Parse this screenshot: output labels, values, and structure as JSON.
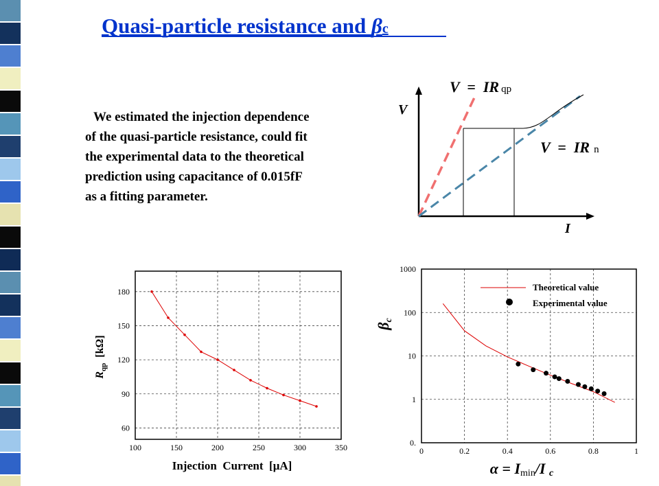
{
  "title": {
    "main": "Quasi-particle resistance and ",
    "greek": "β",
    "sub": "c"
  },
  "body": {
    "lines": [
      "We estimated the injection dependence",
      "of the quasi-particle resistance, could fit",
      "the experimental data to the theoretical",
      "prediction using capacitance of 0.015fF",
      "as a fitting parameter."
    ]
  },
  "diagram": {
    "y_axis": "V",
    "x_axis": "I",
    "label_qp": {
      "main": "V  =  IR",
      "sub": "qp"
    },
    "label_n": {
      "main": "V  =  IR",
      "sub": "n"
    }
  },
  "chart_data": [
    {
      "type": "line",
      "ylabel": {
        "main": "R",
        "sub": "qp",
        "unit": "  [kΩ]"
      },
      "xlabel": "Injection  Current  [μA]",
      "xlim": [
        100,
        350
      ],
      "xticks": [
        100,
        150,
        200,
        250,
        300,
        350
      ],
      "ylim": [
        50,
        198
      ],
      "yticks": [
        60,
        90,
        120,
        150,
        180
      ],
      "grid": true,
      "log_y": false,
      "series": [
        {
          "color": "#dd0000",
          "mode": "line+markers",
          "x": [
            120,
            140,
            160,
            180,
            200,
            220,
            240,
            260,
            280,
            300,
            320
          ],
          "values": [
            180,
            157,
            142,
            127,
            120,
            111,
            102,
            95,
            89,
            84,
            79
          ]
        }
      ]
    },
    {
      "type": "line",
      "ylabel": {
        "main": "β",
        "sub": "c"
      },
      "xlabel": {
        "pre": "α = I",
        "sub": "min",
        "post": "/I ",
        "sub2": "c"
      },
      "xlim": [
        0,
        1
      ],
      "xticks": [
        0,
        0.2,
        0.4,
        0.6,
        0.8,
        1
      ],
      "ylim": [
        0.1,
        1000
      ],
      "yticks": [
        {
          "value": 0.1,
          "label": "0."
        },
        1,
        10,
        100,
        1000
      ],
      "grid": true,
      "log_y": true,
      "legend": "top-right",
      "series": [
        {
          "name": "Theoretical value",
          "color": "#dd0000",
          "mode": "line",
          "x": [
            0.1,
            0.2,
            0.3,
            0.4,
            0.5,
            0.6,
            0.7,
            0.8,
            0.9
          ],
          "values": [
            160,
            38,
            17,
            9.5,
            5.8,
            3.6,
            2.3,
            1.5,
            0.85
          ]
        },
        {
          "name": "Experimental  value",
          "color": "#000000",
          "mode": "markers",
          "x": [
            0.45,
            0.52,
            0.58,
            0.62,
            0.64,
            0.68,
            0.73,
            0.76,
            0.79,
            0.82,
            0.85
          ],
          "values": [
            6.5,
            4.8,
            4.0,
            3.3,
            3.0,
            2.6,
            2.2,
            1.95,
            1.75,
            1.55,
            1.35
          ]
        }
      ]
    }
  ]
}
